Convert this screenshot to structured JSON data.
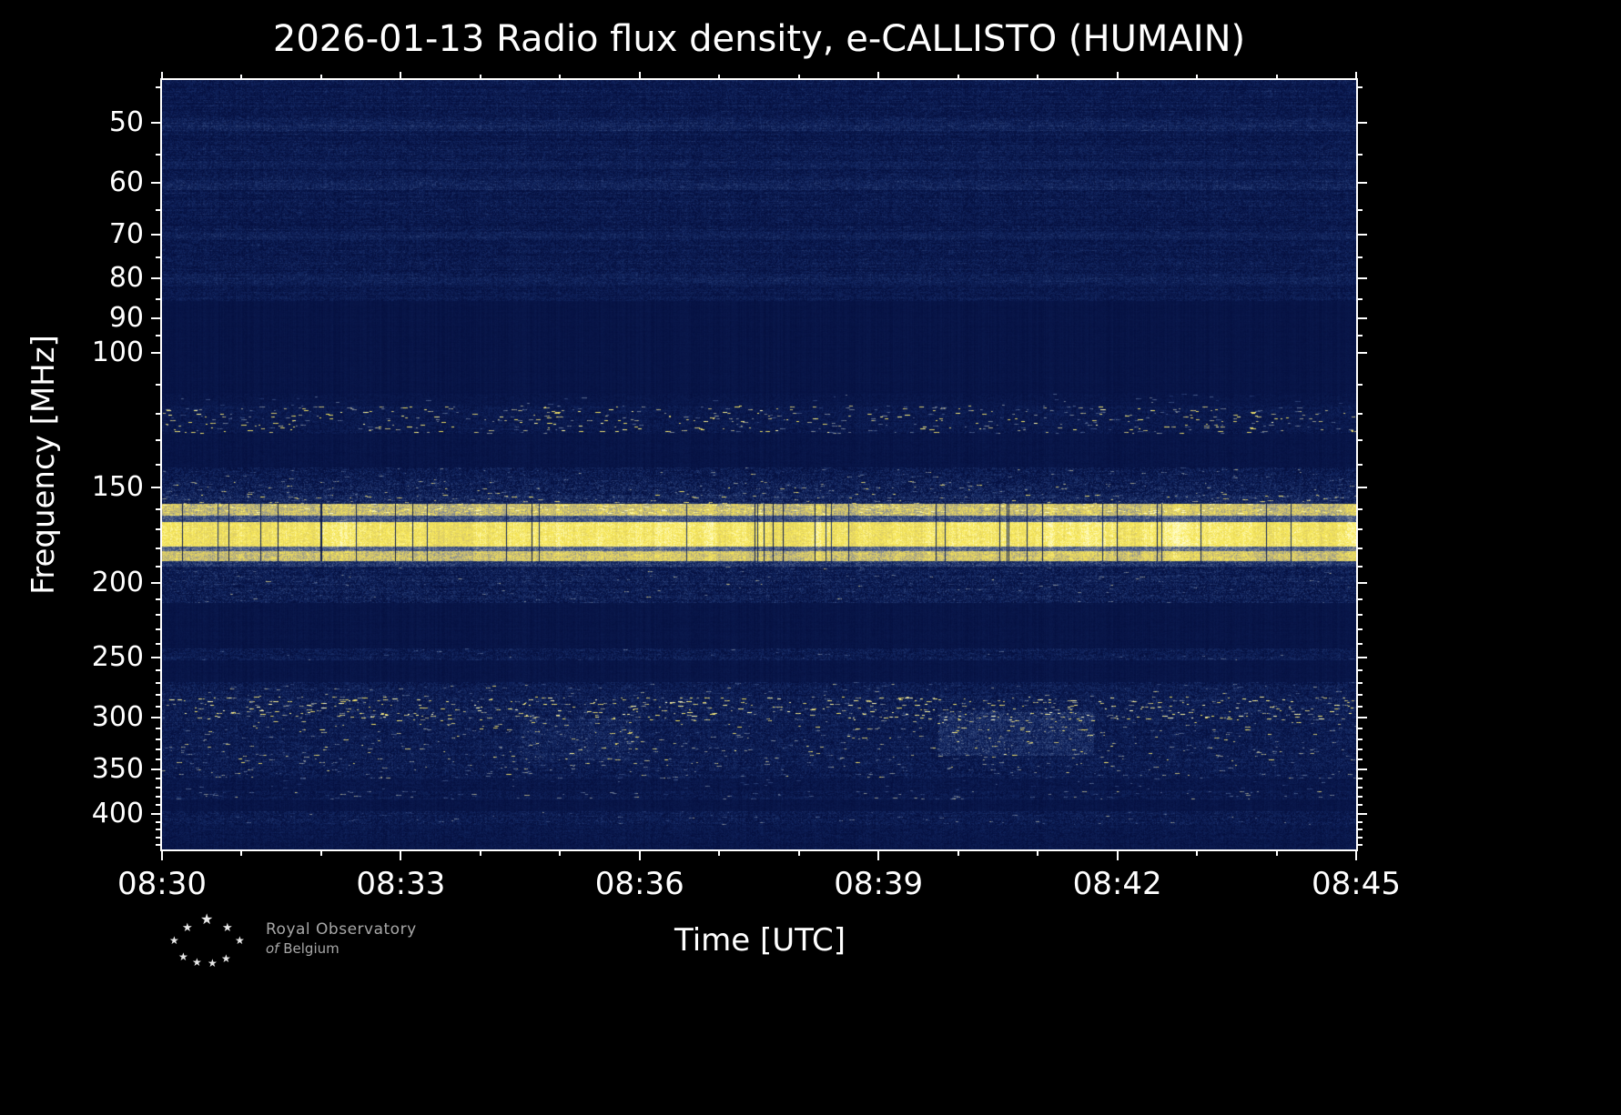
{
  "title": "2026-01-13 Radio flux density, e-CALLISTO (HUMAIN)",
  "axes": {
    "xlabel": "Time [UTC]",
    "ylabel": "Frequency [MHz]",
    "x_tick_labels": [
      "08:30",
      "08:33",
      "08:36",
      "08:39",
      "08:42",
      "08:45"
    ],
    "y_tick_labels": [
      "50",
      "60",
      "70",
      "80",
      "90",
      "100",
      "150",
      "200",
      "250",
      "300",
      "350",
      "400"
    ]
  },
  "footer": {
    "org_line1": "Royal Observatory",
    "org_line2_italic": "of",
    "org_line2_rest": "Belgium"
  },
  "chart_data": {
    "type": "heatmap",
    "title": "2026-01-13 Radio flux density, e-CALLISTO (HUMAIN)",
    "xlabel": "Time [UTC]",
    "ylabel": "Frequency [MHz]",
    "x_start": "08:30",
    "x_end": "08:45",
    "x_span_minutes": 15,
    "x_major_tick_minutes": [
      0,
      3,
      6,
      9,
      12,
      15
    ],
    "x_minor_tick_minutes": [
      1,
      2,
      4,
      5,
      7,
      8,
      10,
      11,
      13,
      14
    ],
    "y_scale": "log",
    "y_min_mhz": 44,
    "y_max_mhz": 445.5,
    "y_major_ticks_mhz": [
      50,
      60,
      70,
      80,
      90,
      100,
      150,
      200,
      250,
      300,
      350,
      400
    ],
    "y_minor_ticks_mhz": [
      45,
      55,
      65,
      75,
      85,
      95,
      110,
      120,
      130,
      140,
      160,
      170,
      180,
      190,
      210,
      220,
      230,
      240,
      260,
      270,
      280,
      290,
      310,
      320,
      330,
      340,
      360,
      370,
      380,
      390,
      410,
      420,
      430,
      440
    ],
    "colormap": [
      [
        0,
        5,
        16,
        64
      ],
      [
        0.22,
        18,
        38,
        96
      ],
      [
        0.42,
        62,
        82,
        132
      ],
      [
        0.6,
        130,
        138,
        148
      ],
      [
        0.75,
        210,
        195,
        110
      ],
      [
        0.88,
        248,
        232,
        85
      ],
      [
        1,
        255,
        252,
        200
      ]
    ],
    "seed": 20260113,
    "dark_dropout_col_prob": 0.022,
    "bands": [
      {
        "f": [
          44,
          49.5
        ],
        "base": 0.1,
        "pix": 0.13,
        "row": 0.05
      },
      {
        "f": [
          49.5,
          51.2
        ],
        "base": 0.17,
        "pix": 0.13,
        "row": 0.04
      },
      {
        "f": [
          51.2,
          56.2
        ],
        "base": 0.1,
        "pix": 0.13,
        "row": 0.05
      },
      {
        "f": [
          56.2,
          57.4
        ],
        "base": 0.15,
        "pix": 0.12,
        "row": 0.03
      },
      {
        "f": [
          57.4,
          59.4
        ],
        "base": 0.1,
        "pix": 0.13,
        "row": 0.05
      },
      {
        "f": [
          59.4,
          61.2
        ],
        "base": 0.17,
        "pix": 0.13,
        "row": 0.03
      },
      {
        "f": [
          61.2,
          69.4
        ],
        "base": 0.1,
        "pix": 0.13,
        "row": 0.05
      },
      {
        "f": [
          69.4,
          71.2
        ],
        "base": 0.15,
        "pix": 0.12,
        "row": 0.03
      },
      {
        "f": [
          71.2,
          79.4
        ],
        "base": 0.1,
        "pix": 0.13,
        "row": 0.05
      },
      {
        "f": [
          79.4,
          81.4
        ],
        "base": 0.15,
        "pix": 0.12,
        "row": 0.03
      },
      {
        "f": [
          81.4,
          85.5
        ],
        "base": 0.09,
        "pix": 0.11,
        "row": 0.04
      },
      {
        "f": [
          85.5,
          113
        ],
        "base": 0.045,
        "pix": 0.02,
        "row": 0.008
      },
      {
        "f": [
          113,
          117
        ],
        "base": 0.06,
        "pix": 0.05,
        "row": 0.01,
        "sp": 0.002,
        "sg": [
          0.2,
          0.5
        ]
      },
      {
        "f": [
          117,
          127.5
        ],
        "base": 0.085,
        "pix": 0.1,
        "row": 0.02,
        "sp": 0.013,
        "sg": [
          0.3,
          0.85
        ]
      },
      {
        "f": [
          127.5,
          141
        ],
        "base": 0.05,
        "pix": 0.03,
        "row": 0.008
      },
      {
        "f": [
          141,
          147
        ],
        "base": 0.11,
        "pix": 0.17,
        "row": 0.03,
        "sp": 0.004,
        "sg": [
          0.2,
          0.5
        ]
      },
      {
        "f": [
          147,
          153
        ],
        "base": 0.13,
        "pix": 0.19,
        "row": 0.03,
        "sp": 0.006,
        "sg": [
          0.2,
          0.6
        ]
      },
      {
        "f": [
          153,
          157.2
        ],
        "base": 0.19,
        "pix": 0.18,
        "row": 0.03,
        "sp": 0.012,
        "sg": [
          0.2,
          0.6
        ]
      },
      {
        "f": [
          157.2,
          162.8
        ],
        "base": 0.74,
        "pix": 0.1,
        "col": 0.1,
        "sp": 0.02,
        "sg": [
          0.1,
          0.25
        ],
        "drop": 1
      },
      {
        "f": [
          162.8,
          166.2
        ],
        "base": 0.42,
        "pix": 0.14,
        "col": 0.08,
        "drop": 1
      },
      {
        "f": [
          166.2,
          178.8
        ],
        "base": 0.88,
        "pix": 0.07,
        "col": 0.1,
        "drop": 1
      },
      {
        "f": [
          178.8,
          181.4
        ],
        "base": 0.48,
        "pix": 0.14,
        "col": 0.08,
        "drop": 1
      },
      {
        "f": [
          181.4,
          186.8
        ],
        "base": 0.76,
        "pix": 0.1,
        "col": 0.1,
        "drop": 1
      },
      {
        "f": [
          186.8,
          190
        ],
        "base": 0.3,
        "pix": 0.16,
        "row": 0.03
      },
      {
        "f": [
          190,
          212
        ],
        "base": 0.13,
        "pix": 0.17,
        "row": 0.04,
        "sp": 0.003,
        "sg": [
          0.15,
          0.45
        ]
      },
      {
        "f": [
          212,
          243
        ],
        "base": 0.05,
        "pix": 0.025,
        "row": 0.008
      },
      {
        "f": [
          243,
          252
        ],
        "base": 0.11,
        "pix": 0.14,
        "row": 0.025,
        "sp": 0.002,
        "sg": [
          0.15,
          0.4
        ]
      },
      {
        "f": [
          252,
          269
        ],
        "base": 0.05,
        "pix": 0.025,
        "row": 0.008
      },
      {
        "f": [
          269,
          281
        ],
        "base": 0.11,
        "pix": 0.15,
        "row": 0.03,
        "sp": 0.004,
        "sg": [
          0.2,
          0.5
        ]
      },
      {
        "f": [
          281,
          302
        ],
        "base": 0.12,
        "pix": 0.17,
        "row": 0.03,
        "sp": 0.016,
        "sg": [
          0.3,
          0.9
        ]
      },
      {
        "f": [
          302,
          344
        ],
        "base": 0.11,
        "pix": 0.15,
        "row": 0.03,
        "sp": 0.007,
        "sg": [
          0.25,
          0.7
        ]
      },
      {
        "f": [
          344,
          359
        ],
        "base": 0.11,
        "pix": 0.15,
        "row": 0.03,
        "sp": 0.007,
        "sg": [
          0.2,
          0.6
        ]
      },
      {
        "f": [
          359,
          373
        ],
        "base": 0.07,
        "pix": 0.07,
        "row": 0.015,
        "sp": 0.002,
        "sg": [
          0.15,
          0.4
        ]
      },
      {
        "f": [
          373,
          383
        ],
        "base": 0.09,
        "pix": 0.11,
        "row": 0.02,
        "sp": 0.008,
        "sg": [
          0.2,
          0.6
        ]
      },
      {
        "f": [
          383,
          397
        ],
        "base": 0.055,
        "pix": 0.04,
        "row": 0.01
      },
      {
        "f": [
          397,
          413
        ],
        "base": 0.11,
        "pix": 0.14,
        "row": 0.025,
        "sp": 0.003,
        "sg": [
          0.15,
          0.45
        ]
      },
      {
        "f": [
          413,
          430
        ],
        "base": 0.08,
        "pix": 0.09,
        "row": 0.02
      },
      {
        "f": [
          430,
          445.6
        ],
        "base": 0.07,
        "pix": 0.07,
        "row": 0.015
      }
    ],
    "patches": [
      {
        "x": [
          0.65,
          0.78
        ],
        "f": [
          294,
          336
        ],
        "boost": 0.1
      },
      {
        "x": [
          0.3,
          0.4
        ],
        "f": [
          300,
          340
        ],
        "boost": 0.05
      }
    ]
  }
}
